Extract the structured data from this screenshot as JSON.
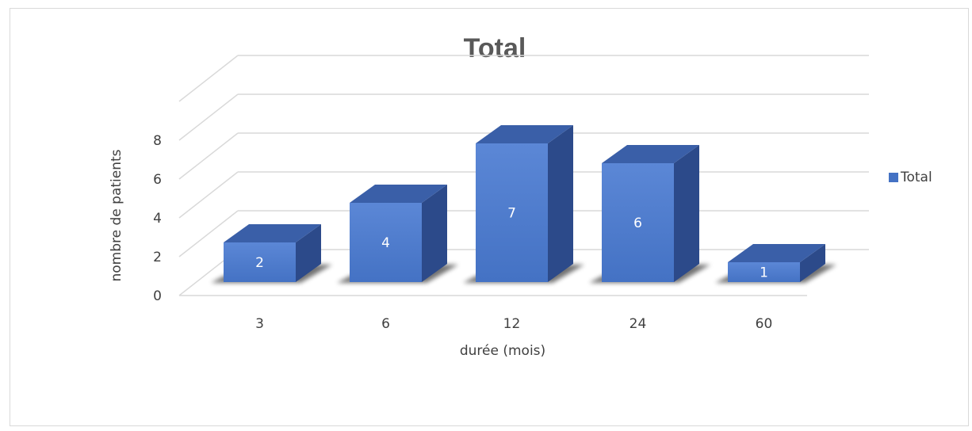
{
  "chart_data": {
    "type": "bar",
    "title": "Total",
    "categories": [
      "3",
      "6",
      "12",
      "24",
      "60"
    ],
    "series": [
      {
        "name": "Total",
        "values": [
          2,
          4,
          7,
          6,
          1
        ]
      }
    ],
    "xlabel": "durée (mois)",
    "ylabel": "nombre de patients",
    "ylim": [
      0,
      8
    ],
    "yticks": [
      0,
      2,
      4,
      6,
      8
    ],
    "grid": true,
    "legend": "right",
    "style": "3d-column",
    "colors": {
      "bar_front": "#4472c4",
      "bar_front_light": "#5b87d6",
      "bar_top": "#3a5fa8",
      "bar_side": "#2c4a8a",
      "grid": "#d9d9d9",
      "shadow": "#000000"
    }
  }
}
